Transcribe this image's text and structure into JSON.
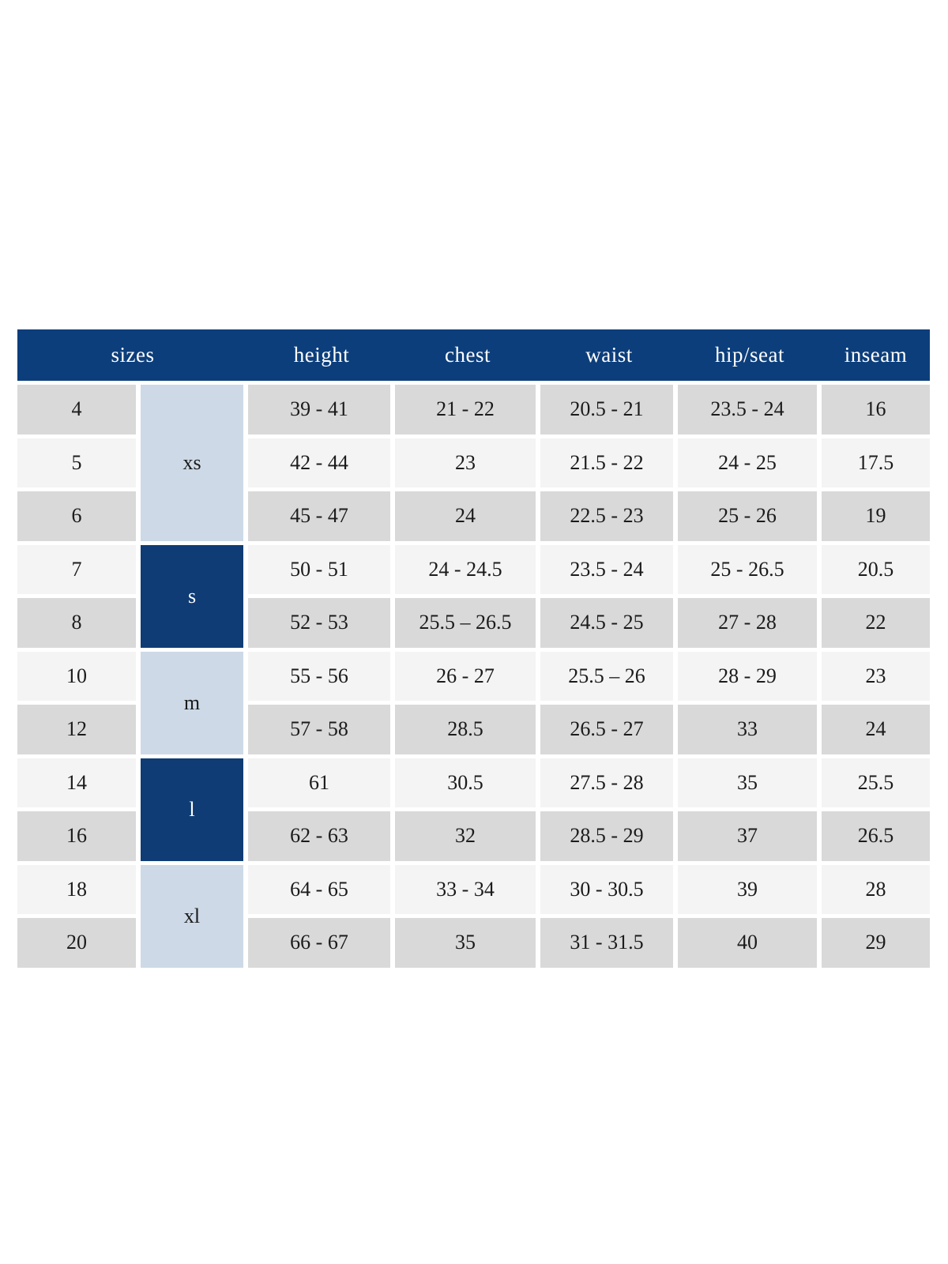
{
  "colors": {
    "header_bg": "#0c3e7b",
    "header_text": "#ffffff",
    "letter_dark_bg": "#0f3c74",
    "letter_light_bg": "#cdd9e6",
    "row_gray": "#d9d9d9",
    "row_light": "#f4f4f4",
    "cell_text": "#1b1b1b"
  },
  "table": {
    "headers": [
      "sizes",
      "height",
      "chest",
      "waist",
      "hip/seat",
      "inseam"
    ],
    "column_keys": [
      "height",
      "chest",
      "waist",
      "hip_seat",
      "inseam"
    ],
    "sections": [
      {
        "label": "xs",
        "shade": "light",
        "rows": [
          {
            "size": "4",
            "height": "39 - 41",
            "chest": "21 - 22",
            "waist": "20.5 - 21",
            "hip_seat": "23.5 - 24",
            "inseam": "16"
          },
          {
            "size": "5",
            "height": "42 - 44",
            "chest": "23",
            "waist": "21.5 - 22",
            "hip_seat": "24 - 25",
            "inseam": "17.5"
          },
          {
            "size": "6",
            "height": "45 - 47",
            "chest": "24",
            "waist": "22.5 - 23",
            "hip_seat": "25 - 26",
            "inseam": "19"
          }
        ]
      },
      {
        "label": "s",
        "shade": "dark",
        "rows": [
          {
            "size": "7",
            "height": "50 - 51",
            "chest": "24 - 24.5",
            "waist": "23.5 - 24",
            "hip_seat": "25 - 26.5",
            "inseam": "20.5"
          },
          {
            "size": "8",
            "height": "52 - 53",
            "chest": "25.5 – 26.5",
            "waist": "24.5 - 25",
            "hip_seat": "27 - 28",
            "inseam": "22"
          }
        ]
      },
      {
        "label": "m",
        "shade": "light",
        "rows": [
          {
            "size": "10",
            "height": "55 - 56",
            "chest": "26 - 27",
            "waist": "25.5 – 26",
            "hip_seat": "28 - 29",
            "inseam": "23"
          },
          {
            "size": "12",
            "height": "57 - 58",
            "chest": "28.5",
            "waist": "26.5 - 27",
            "hip_seat": "33",
            "inseam": "24"
          }
        ]
      },
      {
        "label": "l",
        "shade": "dark",
        "rows": [
          {
            "size": "14",
            "height": "61",
            "chest": "30.5",
            "waist": "27.5 - 28",
            "hip_seat": "35",
            "inseam": "25.5"
          },
          {
            "size": "16",
            "height": "62 - 63",
            "chest": "32",
            "waist": "28.5 - 29",
            "hip_seat": "37",
            "inseam": "26.5"
          }
        ]
      },
      {
        "label": "xl",
        "shade": "light",
        "rows": [
          {
            "size": "18",
            "height": "64 - 65",
            "chest": "33 - 34",
            "waist": "30 - 30.5",
            "hip_seat": "39",
            "inseam": "28"
          },
          {
            "size": "20",
            "height": "66 - 67",
            "chest": "35",
            "waist": "31 - 31.5",
            "hip_seat": "40",
            "inseam": "29"
          }
        ]
      }
    ]
  }
}
